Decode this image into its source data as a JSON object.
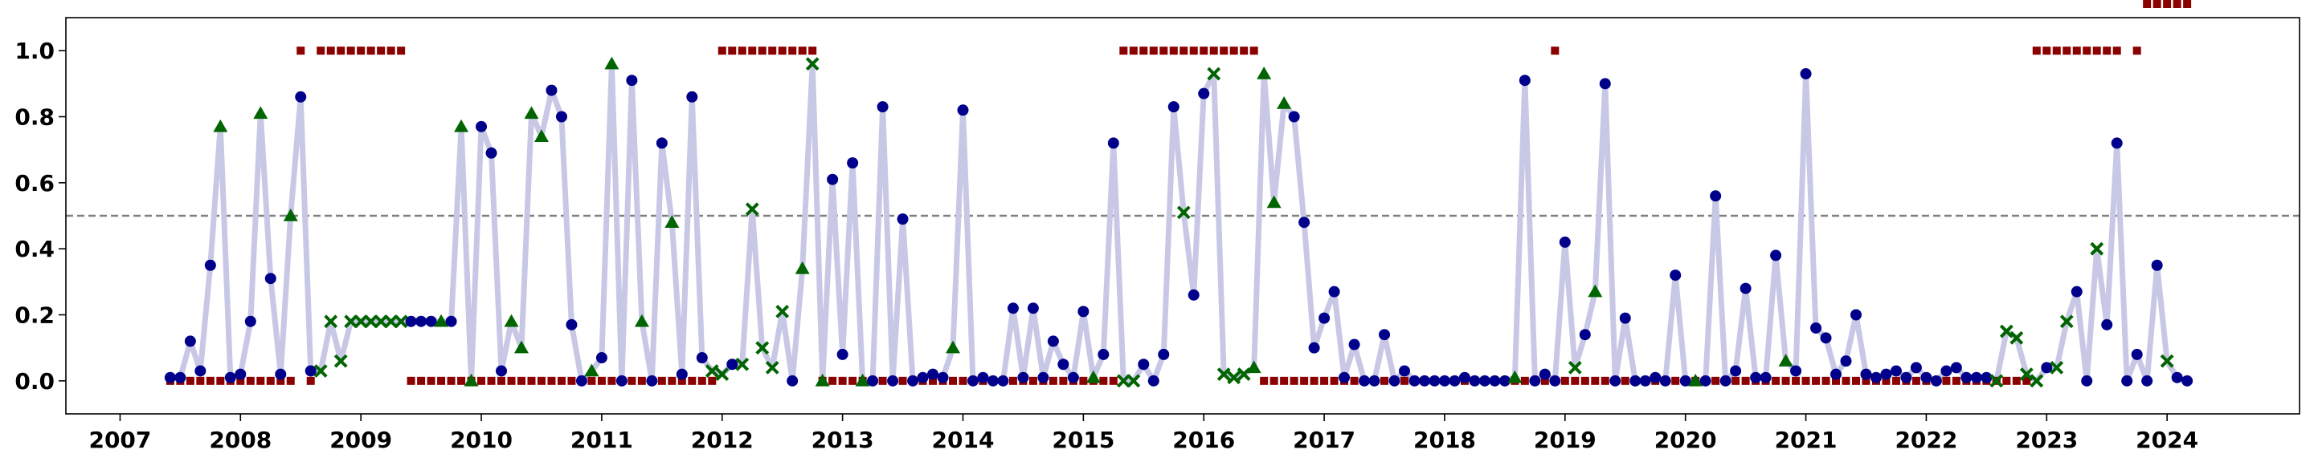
{
  "chart_data": {
    "type": "scatter",
    "title": "",
    "xlabel": "",
    "ylabel": "",
    "xlim": [
      2006.55,
      2025.1
    ],
    "ylim": [
      -0.1,
      1.1
    ],
    "xticks": [
      2007,
      2008,
      2009,
      2010,
      2011,
      2012,
      2013,
      2014,
      2015,
      2016,
      2017,
      2018,
      2019,
      2020,
      2021,
      2022,
      2023,
      2024
    ],
    "yticks": [
      0.0,
      0.2,
      0.4,
      0.6,
      0.8,
      1.0
    ],
    "threshold": 0.5,
    "grid": false,
    "legend": "none",
    "colors": {
      "line": "#c8c8e6",
      "score_marker": "#00008b",
      "triangle_marker": "#006400",
      "x_marker": "#006400",
      "label_marker": "#8b0000",
      "threshold": "#808080"
    },
    "start": [
      2007,
      6
    ],
    "score": [
      0.01,
      0.01,
      0.12,
      0.03,
      0.35,
      0.77,
      0.01,
      0.02,
      0.18,
      0.81,
      0.31,
      0.02,
      0.5,
      0.86,
      0.03,
      0.03,
      0.18,
      0.06,
      0.18,
      0.18,
      0.18,
      0.18,
      0.18,
      0.18,
      0.18,
      0.18,
      0.18,
      0.18,
      0.18,
      0.77,
      0.0,
      0.77,
      0.69,
      0.03,
      0.18,
      0.1,
      0.81,
      0.74,
      0.88,
      0.8,
      0.17,
      0.0,
      0.03,
      0.07,
      0.96,
      0.0,
      0.91,
      0.18,
      0.0,
      0.72,
      0.48,
      0.02,
      0.86,
      0.07,
      0.03,
      0.02,
      0.05,
      0.05,
      0.52,
      0.1,
      0.04,
      0.21,
      0.0,
      0.34,
      0.96,
      0.0,
      0.61,
      0.08,
      0.66,
      0.0,
      0.0,
      0.83,
      0.0,
      0.49,
      0.0,
      0.01,
      0.02,
      0.01,
      0.1,
      0.82,
      0.0,
      0.01,
      0.0,
      0.0,
      0.22,
      0.01,
      0.22,
      0.01,
      0.12,
      0.05,
      0.01,
      0.21,
      0.01,
      0.08,
      0.72,
      0.0,
      0.0,
      0.05,
      0.0,
      0.08,
      0.83,
      0.51,
      0.26,
      0.87,
      0.93,
      0.02,
      0.01,
      0.02,
      0.04,
      0.93,
      0.54,
      0.84,
      0.8,
      0.48,
      0.1,
      0.19,
      0.27,
      0.01,
      0.11,
      0.0,
      0.0,
      0.14,
      0.0,
      0.03,
      0.0,
      0.0,
      0.0,
      0.0,
      0.0,
      0.01,
      0.0,
      0.0,
      0.0,
      0.0,
      0.01,
      0.91,
      0.0,
      0.02,
      0.0,
      0.42,
      0.04,
      0.14,
      0.27,
      0.9,
      0.0,
      0.19,
      0.0,
      0.0,
      0.01,
      0.0,
      0.32,
      0.0,
      0.0,
      0.0,
      0.56,
      0.0,
      0.03,
      0.28,
      0.01,
      0.01,
      0.38,
      0.06,
      0.03,
      0.93,
      0.16,
      0.13,
      0.02,
      0.06,
      0.2,
      0.02,
      0.01,
      0.02,
      0.03,
      0.01,
      0.04,
      0.01,
      0.0,
      0.03,
      0.04,
      0.01,
      0.01,
      0.01,
      0.0,
      0.15,
      0.13,
      0.02,
      0.0,
      0.04,
      0.04,
      0.18,
      0.27,
      0.0,
      0.4,
      0.17,
      0.72,
      0.0,
      0.08,
      0.0,
      0.35,
      0.06,
      0.01,
      0.0
    ],
    "marker": [
      "o",
      "o",
      "o",
      "o",
      "o",
      "^",
      "o",
      "o",
      "o",
      "^",
      "o",
      "o",
      "^",
      "o",
      "o",
      "x",
      "x",
      "x",
      "x",
      "x",
      "x",
      "x",
      "x",
      "x",
      "o",
      "o",
      "o",
      "^",
      "o",
      "^",
      "^",
      "o",
      "o",
      "o",
      "^",
      "^",
      "^",
      "^",
      "o",
      "o",
      "o",
      "o",
      "^",
      "o",
      "^",
      "o",
      "o",
      "^",
      "o",
      "o",
      "^",
      "o",
      "o",
      "o",
      "x",
      "x",
      "o",
      "x",
      "x",
      "x",
      "x",
      "x",
      "o",
      "^",
      "x",
      "^",
      "o",
      "o",
      "o",
      "^",
      "o",
      "o",
      "o",
      "o",
      "o",
      "o",
      "o",
      "o",
      "^",
      "o",
      "o",
      "o",
      "o",
      "o",
      "o",
      "o",
      "o",
      "o",
      "o",
      "o",
      "o",
      "o",
      "^",
      "o",
      "o",
      "x",
      "x",
      "o",
      "o",
      "o",
      "o",
      "x",
      "o",
      "o",
      "x",
      "x",
      "x",
      "x",
      "^",
      "^",
      "^",
      "^",
      "o",
      "o",
      "o",
      "o",
      "o",
      "o",
      "o",
      "o",
      "o",
      "o",
      "o",
      "o",
      "o",
      "o",
      "o",
      "o",
      "o",
      "o",
      "o",
      "o",
      "o",
      "o",
      "^",
      "o",
      "o",
      "o",
      "o",
      "o",
      "x",
      "o",
      "^",
      "o",
      "o",
      "o",
      "o",
      "o",
      "o",
      "o",
      "o",
      "o",
      "^",
      "o",
      "o",
      "o",
      "o",
      "o",
      "o",
      "o",
      "o",
      "^",
      "o",
      "o",
      "o",
      "o",
      "o",
      "o",
      "o",
      "o",
      "o",
      "o",
      "o",
      "o",
      "o",
      "o",
      "o",
      "o",
      "o",
      "o",
      "o",
      "o",
      "x",
      "x",
      "x",
      "x",
      "x",
      "o",
      "x",
      "x",
      "o",
      "o",
      "x",
      "o",
      "o",
      "o",
      "o",
      "o",
      "o",
      "x",
      "o",
      "o"
    ],
    "label": [
      0,
      0,
      0,
      0,
      0,
      0,
      0,
      0,
      0,
      0,
      0,
      0,
      0,
      1,
      0,
      1,
      1,
      1,
      1,
      1,
      1,
      1,
      1,
      1,
      0,
      0,
      0,
      0,
      0,
      0,
      0,
      0,
      0,
      0,
      0,
      0,
      0,
      0,
      0,
      0,
      0,
      0,
      0,
      0,
      0,
      0,
      0,
      0,
      0,
      0,
      0,
      0,
      0,
      0,
      0,
      1,
      1,
      1,
      1,
      1,
      1,
      1,
      1,
      1,
      1,
      0,
      0,
      0,
      0,
      0,
      0,
      0,
      0,
      0,
      0,
      0,
      0,
      0,
      0,
      0,
      0,
      0,
      0,
      0,
      0,
      0,
      0,
      0,
      0,
      0,
      0,
      0,
      0,
      0,
      0,
      1,
      1,
      1,
      1,
      1,
      1,
      1,
      1,
      1,
      1,
      1,
      1,
      1,
      1,
      0,
      0,
      0,
      0,
      0,
      0,
      0,
      0,
      0,
      0,
      0,
      0,
      0,
      0,
      0,
      0,
      0,
      0,
      0,
      0,
      0,
      0,
      0,
      0,
      0,
      0,
      0,
      0,
      0,
      1,
      0,
      0,
      0,
      0,
      0,
      0,
      0,
      0,
      0,
      0,
      0,
      0,
      0,
      0,
      0,
      0,
      0,
      0,
      0,
      0,
      0,
      0,
      0,
      0,
      0,
      0,
      0,
      0,
      0,
      0,
      0,
      0,
      0,
      0,
      0,
      0,
      0,
      0,
      0,
      0,
      0,
      0,
      0,
      0,
      0,
      0,
      0,
      1,
      1,
      1,
      1,
      1,
      1,
      1,
      1,
      1,
      0,
      1
    ]
  }
}
